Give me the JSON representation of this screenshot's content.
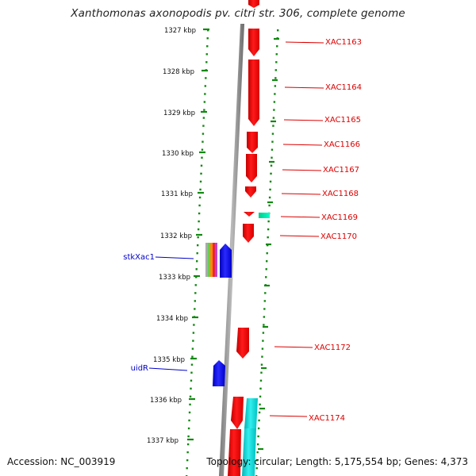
{
  "title": "Xanthomonas axonopodis pv. citri str. 306, complete genome",
  "footer": {
    "accession": "Accession: NC_003919",
    "topology": "Topology: circular; Length: 5,175,554 bp; Genes: 4,373"
  },
  "ruler_labels": [
    "1327 kbp",
    "1328 kbp",
    "1329 kbp",
    "1330 kbp",
    "1331 kbp",
    "1332 kbp",
    "1333 kbp",
    "1334 kbp",
    "1335 kbp",
    "1336 kbp",
    "1337 kbp"
  ],
  "gene_labels_forward": [
    "XAC1163",
    "XAC1164",
    "XAC1165",
    "XAC1166",
    "XAC1167",
    "XAC1168",
    "XAC1169",
    "XAC1170",
    "XAC1172",
    "XAC1174"
  ],
  "gene_labels_reverse": [
    "stkXac1",
    "uidR"
  ],
  "colors": {
    "forward_gene": "#ff0000",
    "forward_label": "#dd0000",
    "reverse_gene": "#0000ff",
    "reverse_label": "#0000cc",
    "special_gene": "#00ddaa",
    "track_dots": "#118811",
    "backbone": "#888888"
  }
}
